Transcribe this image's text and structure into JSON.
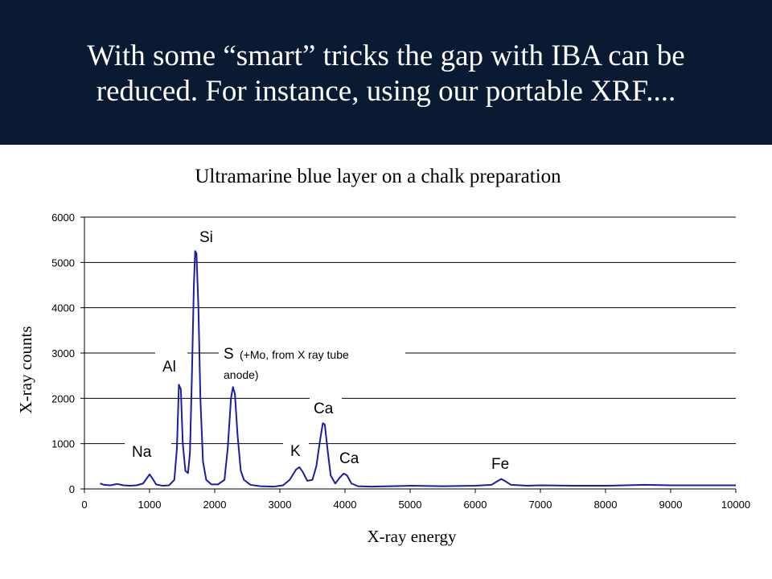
{
  "slide": {
    "title_lines": [
      "With some “smart” tricks the gap with IBA can be",
      "reduced. For instance, using our portable XRF...."
    ]
  },
  "chart_data": {
    "type": "line",
    "title": "Ultramarine blue layer on a chalk preparation",
    "x_label": "X-ray energy",
    "y_label": "X-ray counts",
    "xlim": [
      0,
      10000
    ],
    "ylim": [
      0,
      6000
    ],
    "xticks": [
      0,
      1000,
      2000,
      3000,
      4000,
      5000,
      6000,
      7000,
      8000,
      9000,
      10000
    ],
    "yticks": [
      0,
      1000,
      2000,
      3000,
      4000,
      5000,
      6000
    ],
    "grid": true,
    "annotations": [
      "Si",
      "Al",
      "S",
      "(+Mo, from X ray tube",
      "anode)",
      "Na",
      "K",
      "Ca",
      "Ca",
      "Fe"
    ],
    "x": [
      240,
      300,
      400,
      500,
      600,
      700,
      800,
      900,
      950,
      1000,
      1050,
      1100,
      1200,
      1300,
      1380,
      1420,
      1450,
      1480,
      1510,
      1550,
      1590,
      1620,
      1650,
      1680,
      1700,
      1720,
      1750,
      1780,
      1820,
      1870,
      1950,
      2050,
      2150,
      2200,
      2250,
      2280,
      2310,
      2350,
      2400,
      2450,
      2550,
      2700,
      2900,
      3050,
      3150,
      3250,
      3300,
      3350,
      3420,
      3500,
      3560,
      3620,
      3660,
      3690,
      3730,
      3780,
      3850,
      3920,
      3980,
      4030,
      4100,
      4200,
      4400,
      4700,
      5000,
      5500,
      6000,
      6250,
      6350,
      6400,
      6450,
      6550,
      6800,
      7000,
      7500,
      8000,
      8600,
      9000,
      9500,
      10000
    ],
    "series": [
      {
        "name": "spectrum",
        "color": "#1c1ca8",
        "values": [
          120,
          90,
          80,
          110,
          80,
          70,
          80,
          120,
          220,
          320,
          220,
          100,
          70,
          80,
          200,
          900,
          2300,
          2200,
          1000,
          400,
          350,
          800,
          2500,
          4500,
          5250,
          5200,
          4000,
          2000,
          600,
          200,
          100,
          100,
          200,
          900,
          2000,
          2250,
          2100,
          1200,
          400,
          200,
          90,
          60,
          50,
          80,
          200,
          430,
          480,
          380,
          180,
          200,
          500,
          1100,
          1450,
          1420,
          900,
          300,
          120,
          250,
          340,
          300,
          120,
          60,
          50,
          60,
          70,
          60,
          70,
          90,
          180,
          220,
          180,
          90,
          70,
          80,
          70,
          70,
          90,
          80,
          80,
          80
        ]
      }
    ]
  }
}
